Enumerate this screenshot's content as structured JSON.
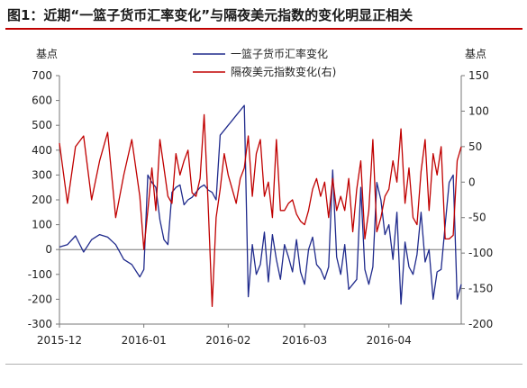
{
  "title": "图1：近期“一篮子货币汇率变化”与隔夜美元指数的变化明显正相关",
  "chart_data": {
    "type": "line",
    "left_axis": {
      "unit": "基点",
      "min": -300,
      "max": 700,
      "ticks": [
        -300,
        -200,
        -100,
        0,
        100,
        200,
        300,
        400,
        500,
        600,
        700
      ]
    },
    "right_axis": {
      "unit": "基点",
      "min": -200,
      "max": 150,
      "ticks": [
        -200,
        -150,
        -100,
        -50,
        0,
        50,
        100,
        150
      ]
    },
    "x_axis": {
      "min": 0,
      "max": 100,
      "tick_labels": [
        "2015-12",
        "2016-01",
        "2016-02",
        "2016-03",
        "2016-04"
      ],
      "tick_positions": [
        0,
        21,
        42,
        61,
        82
      ]
    },
    "grid": false,
    "legend_position": "top-center",
    "series": [
      {
        "name": "一篮子货币汇率变化",
        "axis": "left",
        "color": "#1f2a8c",
        "x": [
          0,
          2,
          4,
          6,
          8,
          10,
          12,
          14,
          16,
          18,
          20,
          21,
          22,
          23,
          24,
          25,
          26,
          27,
          28,
          29,
          30,
          31,
          32,
          33,
          34,
          35,
          36,
          37,
          38,
          39,
          40,
          41,
          42,
          43,
          44,
          45,
          46,
          47,
          48,
          49,
          50,
          51,
          52,
          53,
          54,
          55,
          56,
          57,
          58,
          59,
          60,
          61,
          62,
          63,
          64,
          65,
          66,
          67,
          68,
          69,
          70,
          71,
          72,
          73,
          74,
          75,
          76,
          77,
          78,
          79,
          80,
          81,
          82,
          83,
          84,
          85,
          86,
          87,
          88,
          89,
          90,
          91,
          92,
          93,
          94,
          95,
          96,
          97,
          98,
          99,
          100
        ],
        "values": [
          10,
          20,
          55,
          -10,
          40,
          60,
          50,
          20,
          -40,
          -60,
          -110,
          -80,
          300,
          270,
          250,
          120,
          40,
          20,
          230,
          250,
          260,
          180,
          200,
          210,
          230,
          250,
          260,
          240,
          230,
          200,
          460,
          480,
          500,
          520,
          540,
          560,
          580,
          -190,
          20,
          -100,
          -60,
          70,
          -130,
          60,
          -40,
          -120,
          20,
          -30,
          -90,
          40,
          -90,
          -140,
          0,
          50,
          -60,
          -80,
          -120,
          -70,
          320,
          -30,
          -100,
          20,
          -160,
          -140,
          -120,
          250,
          -80,
          -140,
          -70,
          270,
          200,
          60,
          100,
          -40,
          150,
          -220,
          30,
          -70,
          -100,
          -20,
          150,
          -50,
          0,
          -200,
          -90,
          -80,
          100,
          270,
          300,
          -200,
          -140
        ]
      },
      {
        "name": "隔夜美元指数变化(右)",
        "axis": "right",
        "color": "#c00000",
        "x": [
          0,
          2,
          4,
          6,
          8,
          10,
          12,
          14,
          16,
          18,
          20,
          21,
          22,
          23,
          24,
          25,
          26,
          27,
          28,
          29,
          30,
          31,
          32,
          33,
          34,
          35,
          36,
          37,
          38,
          39,
          40,
          41,
          42,
          43,
          44,
          45,
          46,
          47,
          48,
          49,
          50,
          51,
          52,
          53,
          54,
          55,
          56,
          57,
          58,
          59,
          60,
          61,
          62,
          63,
          64,
          65,
          66,
          67,
          68,
          69,
          70,
          71,
          72,
          73,
          74,
          75,
          76,
          77,
          78,
          79,
          80,
          81,
          82,
          83,
          84,
          85,
          86,
          87,
          88,
          89,
          90,
          91,
          92,
          93,
          94,
          95,
          96,
          97,
          98,
          99,
          100
        ],
        "values": [
          55,
          -30,
          50,
          65,
          -25,
          30,
          70,
          -50,
          10,
          60,
          -20,
          -95,
          -40,
          20,
          -40,
          60,
          20,
          -20,
          -30,
          40,
          10,
          30,
          45,
          -15,
          -20,
          5,
          95,
          -30,
          -175,
          -50,
          -10,
          40,
          10,
          -10,
          -30,
          5,
          20,
          65,
          -20,
          40,
          60,
          -20,
          0,
          -50,
          60,
          -40,
          -40,
          -30,
          -25,
          -45,
          -55,
          -60,
          -40,
          -10,
          5,
          -20,
          0,
          -50,
          5,
          -40,
          -20,
          -40,
          5,
          -70,
          -10,
          30,
          -80,
          -40,
          60,
          -70,
          -50,
          -20,
          -10,
          30,
          0,
          75,
          -30,
          20,
          -50,
          -60,
          15,
          60,
          -40,
          40,
          10,
          50,
          -80,
          -80,
          -75,
          30,
          50
        ]
      }
    ]
  }
}
